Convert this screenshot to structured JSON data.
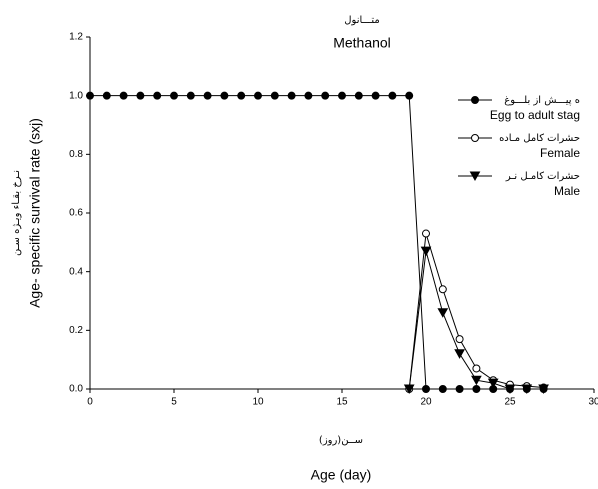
{
  "chart_data": {
    "type": "line",
    "title_fa": "متـــانول",
    "title": "Methanol",
    "xlabel_fa": "ســن(روز)",
    "xlabel": "Age (day)",
    "ylabel_fa": "نـرخ بقـاء ویـژه سـن",
    "ylabel": "Age- specific survival rate (sxj)",
    "xlim": [
      0,
      30
    ],
    "xticks": [
      0,
      5,
      10,
      15,
      20,
      25,
      30
    ],
    "ylim": [
      0,
      1.2
    ],
    "yticks": [
      {
        "value": 0,
        "label": "0.0"
      },
      0.2,
      0.4,
      0.6,
      0.8,
      {
        "value": 1,
        "label": "1.0"
      },
      1.2
    ],
    "legend": "upper right",
    "series": [
      {
        "name_fa": "ه پیـــش از بلـــوغ",
        "name": "Egg to adult stag",
        "color": "#000000",
        "marker": "circle-filled",
        "x": [
          0,
          1,
          2,
          3,
          4,
          5,
          6,
          7,
          8,
          9,
          10,
          11,
          12,
          13,
          14,
          15,
          16,
          17,
          18,
          19,
          20,
          21,
          22,
          23,
          24,
          25,
          26,
          27
        ],
        "values": [
          1,
          1,
          1,
          1,
          1,
          1,
          1,
          1,
          1,
          1,
          1,
          1,
          1,
          1,
          1,
          1,
          1,
          1,
          1,
          1,
          0,
          0,
          0,
          0,
          0,
          0,
          0,
          0
        ]
      },
      {
        "name_fa": "حشرات کامل مـاده",
        "name": "Female",
        "color": "#000000",
        "marker": "circle-open",
        "x": [
          19,
          20,
          21,
          22,
          23,
          24,
          25,
          26,
          27
        ],
        "values": [
          0,
          0.53,
          0.34,
          0.17,
          0.07,
          0.03,
          0.015,
          0.01,
          0.005
        ]
      },
      {
        "name_fa": "حشرات کامـل نـر",
        "name": "Male",
        "color": "#000000",
        "marker": "triangle-down",
        "x": [
          19,
          20,
          21,
          22,
          23,
          24,
          25,
          26,
          27
        ],
        "values": [
          0,
          0.47,
          0.26,
          0.12,
          0.03,
          0.02,
          0,
          0,
          0
        ]
      }
    ]
  }
}
